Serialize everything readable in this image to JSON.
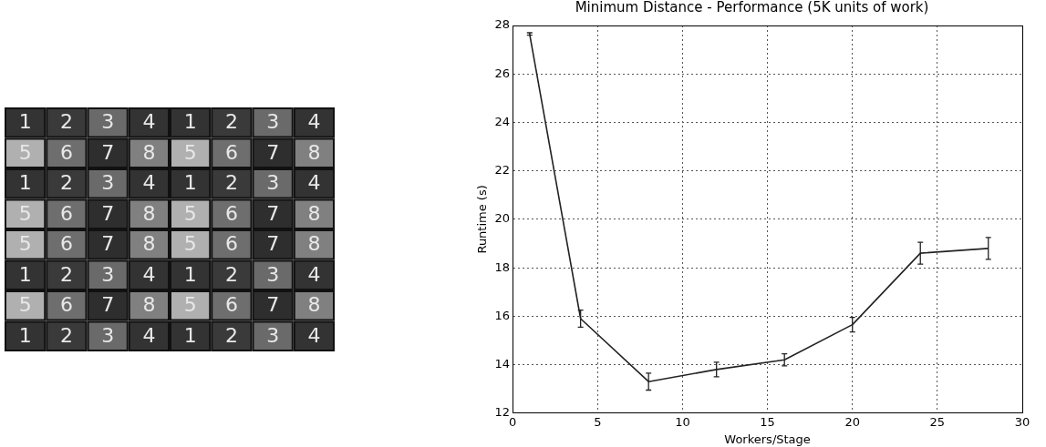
{
  "chart_data": [
    {
      "type": "heatmap",
      "categories": [
        null,
        null,
        null,
        null,
        null,
        null,
        null,
        null
      ],
      "y_categories": [
        null,
        null,
        null,
        null,
        null,
        null,
        null,
        null
      ],
      "cells": [
        [
          1,
          2,
          3,
          4,
          1,
          2,
          3,
          4
        ],
        [
          5,
          6,
          7,
          8,
          5,
          6,
          7,
          8
        ],
        [
          1,
          2,
          3,
          4,
          1,
          2,
          3,
          4
        ],
        [
          5,
          6,
          7,
          8,
          5,
          6,
          7,
          8
        ],
        [
          5,
          6,
          7,
          8,
          5,
          6,
          7,
          8
        ],
        [
          1,
          2,
          3,
          4,
          1,
          2,
          3,
          4
        ],
        [
          5,
          6,
          7,
          8,
          5,
          6,
          7,
          8
        ],
        [
          1,
          2,
          3,
          4,
          1,
          2,
          3,
          4
        ]
      ],
      "colors": [
        [
          "#333333",
          "#3a3a3a",
          "#6a6a6a",
          "#333333",
          "#333333",
          "#3a3a3a",
          "#6a6a6a",
          "#333333"
        ],
        [
          "#b0b0b0",
          "#6e6e6e",
          "#2e2e2e",
          "#808080",
          "#b0b0b0",
          "#6e6e6e",
          "#2e2e2e",
          "#808080"
        ],
        [
          "#333333",
          "#3a3a3a",
          "#6a6a6a",
          "#333333",
          "#333333",
          "#3a3a3a",
          "#6a6a6a",
          "#333333"
        ],
        [
          "#b0b0b0",
          "#6e6e6e",
          "#2e2e2e",
          "#808080",
          "#b0b0b0",
          "#6e6e6e",
          "#2e2e2e",
          "#808080"
        ],
        [
          "#b0b0b0",
          "#6e6e6e",
          "#2e2e2e",
          "#808080",
          "#b0b0b0",
          "#6e6e6e",
          "#2e2e2e",
          "#808080"
        ],
        [
          "#333333",
          "#3a3a3a",
          "#6a6a6a",
          "#333333",
          "#333333",
          "#3a3a3a",
          "#6a6a6a",
          "#333333"
        ],
        [
          "#b0b0b0",
          "#6e6e6e",
          "#2e2e2e",
          "#808080",
          "#b0b0b0",
          "#6e6e6e",
          "#2e2e2e",
          "#808080"
        ],
        [
          "#333333",
          "#3a3a3a",
          "#6a6a6a",
          "#333333",
          "#333333",
          "#3a3a3a",
          "#6a6a6a",
          "#333333"
        ]
      ],
      "data_labels": true
    },
    {
      "type": "line",
      "title": "Minimum Distance - Performance (5K units of work)",
      "xlabel": "Workers/Stage",
      "ylabel": "Runtime (s)",
      "x": [
        1,
        4,
        8,
        12,
        16,
        20,
        24,
        28
      ],
      "series": [
        {
          "color": "#222222",
          "values": [
            27.65,
            15.9,
            13.3,
            13.8,
            14.2,
            15.65,
            18.6,
            18.8
          ],
          "errors": [
            0.05,
            0.35,
            0.35,
            0.3,
            0.25,
            0.3,
            0.45,
            0.45
          ]
        }
      ],
      "xlim": [
        0,
        30
      ],
      "xticks": [
        0,
        5,
        10,
        15,
        20,
        25,
        30
      ],
      "ylim": [
        12,
        28
      ],
      "yticks": [
        12,
        14,
        16,
        18,
        20,
        22,
        24,
        26,
        28
      ],
      "grid": true,
      "marker": "none",
      "line_style": "solid"
    }
  ]
}
